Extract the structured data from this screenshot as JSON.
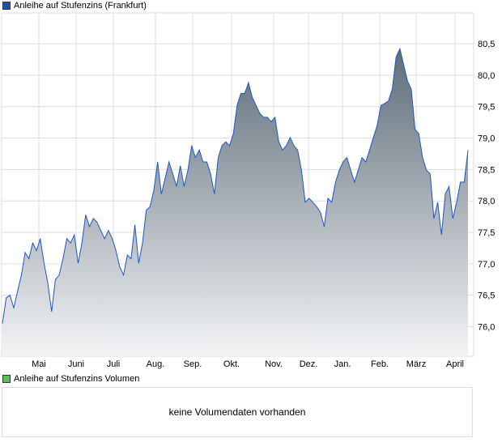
{
  "chart_data": {
    "type": "area",
    "title": "Anleihe auf Stufenzins (Frankfurt)",
    "xlabel": "",
    "ylabel": "",
    "ylim": [
      75.53,
      80.99
    ],
    "y_ticks": [
      "76,0",
      "76,5",
      "77,0",
      "77,5",
      "78,0",
      "78,5",
      "79,0",
      "79,5",
      "80,0",
      "80,5"
    ],
    "y_tick_values": [
      76.0,
      76.5,
      77.0,
      77.5,
      78.0,
      78.5,
      79.0,
      79.5,
      80.0,
      80.5
    ],
    "x_ticks": [
      "Mai",
      "Juni",
      "Juli",
      "Aug.",
      "Sep.",
      "Okt.",
      "Nov.",
      "Dez.",
      "Jan.",
      "Feb.",
      "März",
      "April"
    ],
    "grid": true,
    "legend": "top-left",
    "values": [
      76.05,
      76.46,
      76.5,
      76.3,
      76.56,
      76.82,
      77.18,
      77.08,
      77.33,
      77.21,
      77.4,
      77.01,
      76.69,
      76.24,
      76.75,
      76.82,
      77.08,
      77.4,
      77.33,
      77.46,
      77.01,
      77.33,
      77.78,
      77.59,
      77.72,
      77.66,
      77.53,
      77.4,
      77.53,
      77.4,
      77.21,
      76.95,
      76.82,
      77.14,
      77.08,
      77.62,
      77.01,
      77.33,
      77.85,
      77.91,
      78.17,
      78.62,
      78.11,
      78.36,
      78.62,
      78.43,
      78.23,
      78.56,
      78.23,
      78.49,
      78.88,
      78.69,
      78.81,
      78.62,
      78.62,
      78.43,
      78.11,
      78.69,
      78.88,
      78.94,
      78.88,
      79.07,
      79.52,
      79.71,
      79.71,
      79.88,
      79.65,
      79.52,
      79.39,
      79.33,
      79.33,
      79.26,
      79.33,
      78.94,
      78.81,
      78.88,
      79.01,
      78.88,
      78.81,
      78.49,
      77.98,
      78.04,
      77.98,
      77.91,
      77.82,
      77.59,
      78.04,
      77.98,
      78.3,
      78.49,
      78.62,
      78.69,
      78.49,
      78.3,
      78.49,
      78.69,
      78.62,
      78.81,
      79.01,
      79.2,
      79.52,
      79.55,
      79.59,
      79.78,
      80.29,
      80.42,
      80.17,
      79.91,
      79.78,
      79.14,
      79.07,
      78.69,
      78.49,
      78.43,
      77.72,
      77.98,
      77.46,
      78.11,
      78.23,
      77.72,
      77.98,
      78.3,
      78.3,
      78.81
    ]
  },
  "legend_price": "Anleihe auf Stufenzins (Frankfurt)",
  "legend_volume": "Anleihe auf Stufenzins Volumen",
  "volume_message": "keine Volumendaten vorhanden",
  "colors": {
    "line": "#1f56c8",
    "fill_top": "#5e6d79",
    "fill_bottom": "#f3f4f6",
    "price_swatch": "#1f4fb0",
    "volume_swatch": "#5cc05c",
    "grid": "#dddddd"
  }
}
